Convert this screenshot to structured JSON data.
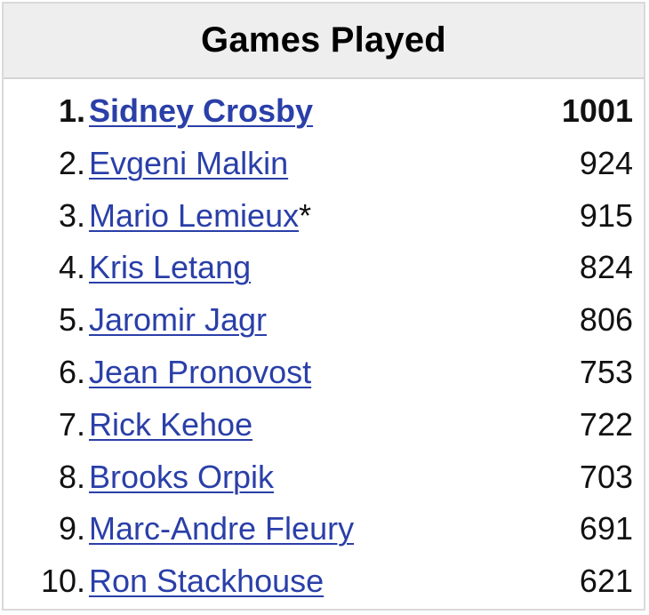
{
  "title": "Games Played",
  "rows": [
    {
      "rank": "1.",
      "name": "Sidney Crosby",
      "mark": "",
      "value": "1001"
    },
    {
      "rank": "2.",
      "name": "Evgeni Malkin",
      "mark": "",
      "value": "924"
    },
    {
      "rank": "3.",
      "name": "Mario Lemieux",
      "mark": "*",
      "value": "915"
    },
    {
      "rank": "4.",
      "name": "Kris Letang",
      "mark": "",
      "value": "824"
    },
    {
      "rank": "5.",
      "name": "Jaromir Jagr",
      "mark": "",
      "value": "806"
    },
    {
      "rank": "6.",
      "name": "Jean Pronovost",
      "mark": "",
      "value": "753"
    },
    {
      "rank": "7.",
      "name": "Rick Kehoe",
      "mark": "",
      "value": "722"
    },
    {
      "rank": "8.",
      "name": "Brooks Orpik",
      "mark": "",
      "value": "703"
    },
    {
      "rank": "9.",
      "name": "Marc-Andre Fleury",
      "mark": "",
      "value": "691"
    },
    {
      "rank": "10.",
      "name": "Ron Stackhouse",
      "mark": "",
      "value": "621"
    }
  ],
  "colors": {
    "link": "#2a3fa8",
    "header_bg": "#eeeeee",
    "border": "#d9d9d9"
  }
}
